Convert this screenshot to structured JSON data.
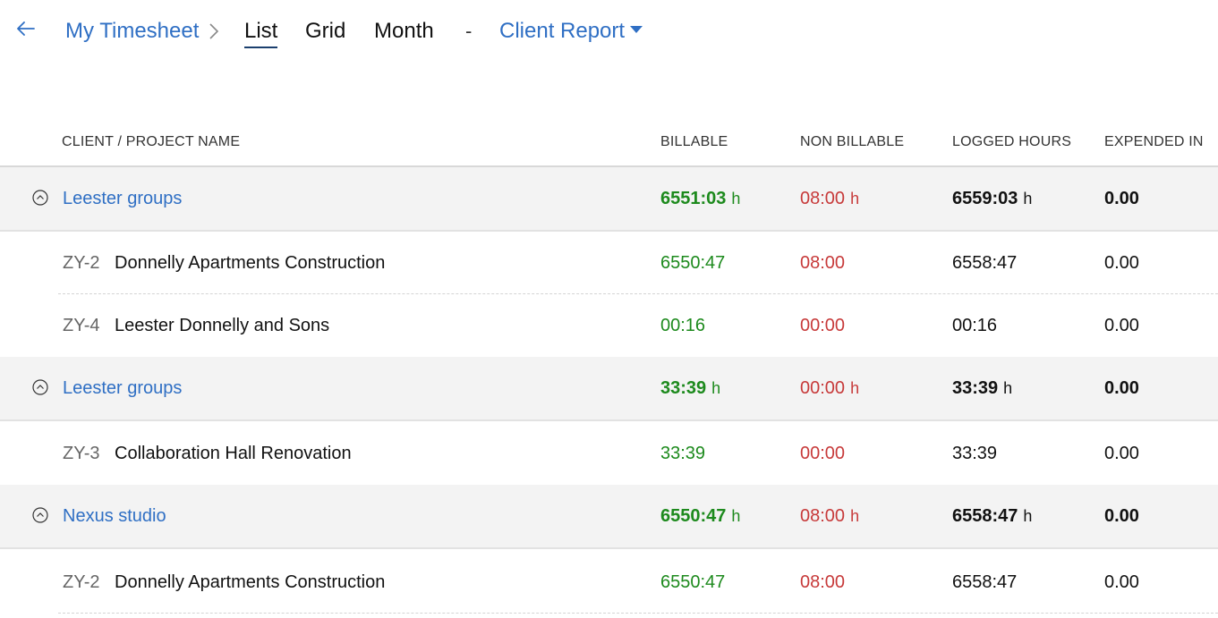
{
  "header": {
    "breadcrumb_root": "My Timesheet",
    "views": [
      "List",
      "Grid",
      "Month"
    ],
    "active_view": "List",
    "separator": "-",
    "report_selector": "Client Report"
  },
  "table": {
    "columns": [
      "CLIENT / PROJECT NAME",
      "BILLABLE",
      "NON BILLABLE",
      "LOGGED HOURS",
      "EXPENDED IN"
    ],
    "unit": "h",
    "groups": [
      {
        "client": "Leester groups",
        "billable": "6551:03",
        "non_billable": "08:00",
        "logged": "6559:03",
        "expended": "0.00",
        "projects": [
          {
            "code": "ZY-2",
            "name": "Donnelly Apartments Construction",
            "billable": "6550:47",
            "non_billable": "08:00",
            "logged": "6558:47",
            "expended": "0.00"
          },
          {
            "code": "ZY-4",
            "name": "Leester Donnelly and Sons",
            "billable": "00:16",
            "non_billable": "00:00",
            "logged": "00:16",
            "expended": "0.00"
          }
        ]
      },
      {
        "client": "Leester groups",
        "billable": "33:39",
        "non_billable": "00:00",
        "logged": "33:39",
        "expended": "0.00",
        "projects": [
          {
            "code": "ZY-3",
            "name": "Collaboration Hall Renovation",
            "billable": "33:39",
            "non_billable": "00:00",
            "logged": "33:39",
            "expended": "0.00"
          }
        ]
      },
      {
        "client": "Nexus studio",
        "billable": "6550:47",
        "non_billable": "08:00",
        "logged": "6558:47",
        "expended": "0.00",
        "projects": [
          {
            "code": "ZY-2",
            "name": "Donnelly Apartments Construction",
            "billable": "6550:47",
            "non_billable": "08:00",
            "logged": "6558:47",
            "expended": "0.00"
          }
        ]
      }
    ]
  },
  "colors": {
    "link": "#2f6fc4",
    "billable": "#1d8a1d",
    "non_billable": "#c73a3a",
    "group_bg": "#f3f3f3"
  }
}
